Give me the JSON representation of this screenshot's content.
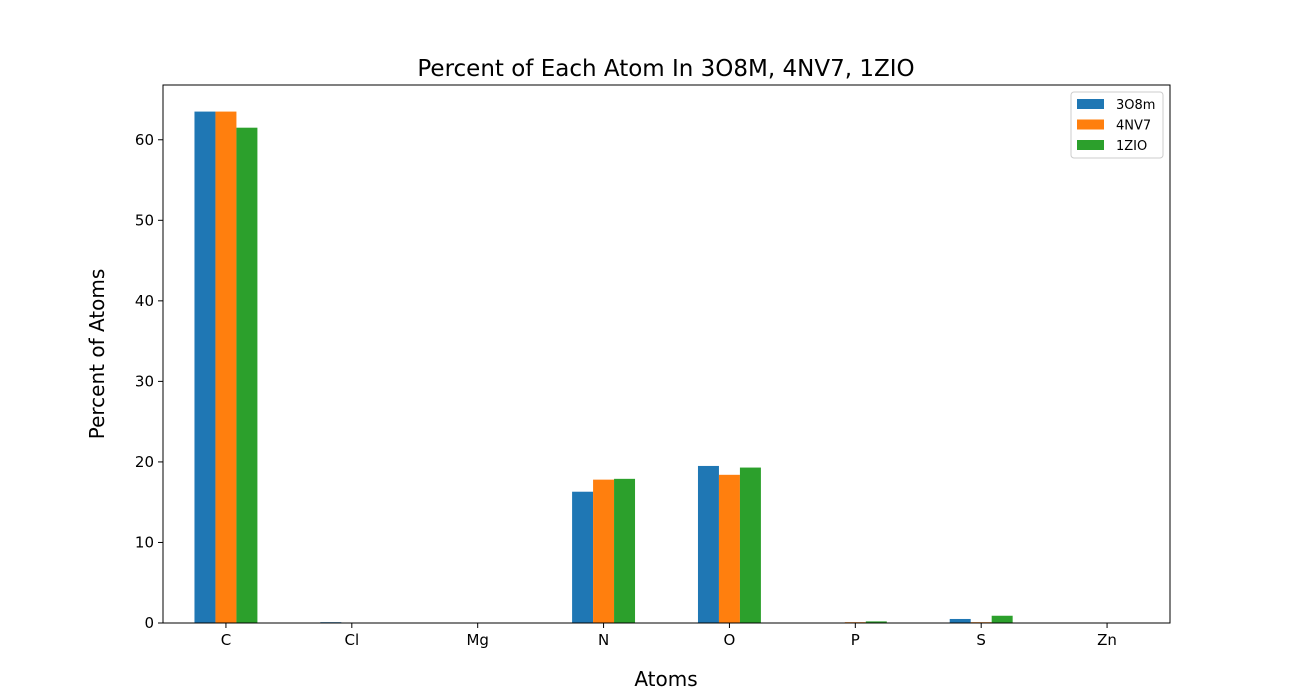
{
  "chart_data": {
    "type": "bar",
    "title": "Percent of Each Atom In 3O8M, 4NV7, 1ZIO",
    "xlabel": "Atoms",
    "ylabel": "Percent of Atoms",
    "categories": [
      "C",
      "Cl",
      "Mg",
      "N",
      "O",
      "P",
      "S",
      "Zn"
    ],
    "ylim": [
      0,
      66.8
    ],
    "yticks": [
      0,
      10,
      20,
      30,
      40,
      50,
      60
    ],
    "grid": false,
    "legend_position": "top-right",
    "series": [
      {
        "name": "3O8m",
        "color": "#1f77b4",
        "values": [
          63.5,
          0.1,
          0.0,
          16.3,
          19.5,
          0.0,
          0.5,
          0.0
        ]
      },
      {
        "name": "4NV7",
        "color": "#ff7f0e",
        "values": [
          63.5,
          0.0,
          0.0,
          17.8,
          18.4,
          0.1,
          0.1,
          0.0
        ]
      },
      {
        "name": "1ZIO",
        "color": "#2ca02c",
        "values": [
          61.5,
          0.0,
          0.0,
          17.9,
          19.3,
          0.2,
          0.9,
          0.0
        ]
      }
    ]
  }
}
